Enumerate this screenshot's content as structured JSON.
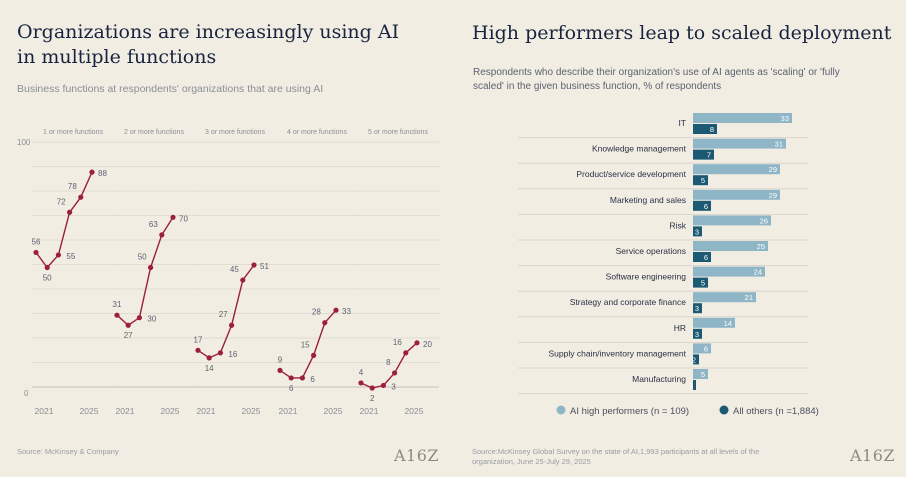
{
  "left": {
    "title": "Organizations are increasingly using AI in multiple functions",
    "subtitle": "Business functions at respondents' organizations that are using AI",
    "source": "Source: McKinsey & Company",
    "logo": "A16Z"
  },
  "right": {
    "title": "High performers leap to scaled deployment",
    "subtitle": "Respondents who describe their organization's use of AI agents as 'scaling' or 'fully scaled' in the given business function, % of respondents",
    "source": "Source:McKinsey Global Survey on the state of AI,1,993 participants at all levels of the organization, June 25-July 29, 2025",
    "logo": "A16Z"
  },
  "chart_data": [
    {
      "type": "line",
      "ylim": [
        0,
        100
      ],
      "y_ticks": [
        "100",
        "0"
      ],
      "x_tick_labels": [
        "2021",
        "2025"
      ],
      "color": "#9c1f3b",
      "series": [
        {
          "name": "1 or more functions",
          "values": [
            56,
            50,
            55,
            72,
            78,
            88
          ]
        },
        {
          "name": "2 or more functions",
          "values": [
            31,
            27,
            30,
            50,
            63,
            70
          ]
        },
        {
          "name": "3 or more functions",
          "values": [
            17,
            14,
            16,
            27,
            45,
            51
          ]
        },
        {
          "name": "4 or more functions",
          "values": [
            9,
            6,
            6,
            15,
            28,
            33
          ]
        },
        {
          "name": "5 or more functions",
          "values": [
            4,
            2,
            3,
            8,
            16,
            20
          ]
        }
      ]
    },
    {
      "type": "bar",
      "categories": [
        "IT",
        "Knowledge management",
        "Product/service development",
        "Marketing and sales",
        "Risk",
        "Service operations",
        "Software engineering",
        "Strategy and corporate finance",
        "HR",
        "Supply chain/inventory management",
        "Manufacturing"
      ],
      "series": [
        {
          "name": "AI high performers (n = 109)",
          "color": "#8fb6c6",
          "values": [
            33,
            31,
            29,
            29,
            26,
            25,
            24,
            21,
            14,
            6,
            5
          ]
        },
        {
          "name": "All others (n =1,884)",
          "color": "#1b5a72",
          "values": [
            8,
            7,
            5,
            6,
            3,
            6,
            5,
            3,
            3,
            2,
            1
          ]
        }
      ],
      "legend": "bottom"
    }
  ]
}
